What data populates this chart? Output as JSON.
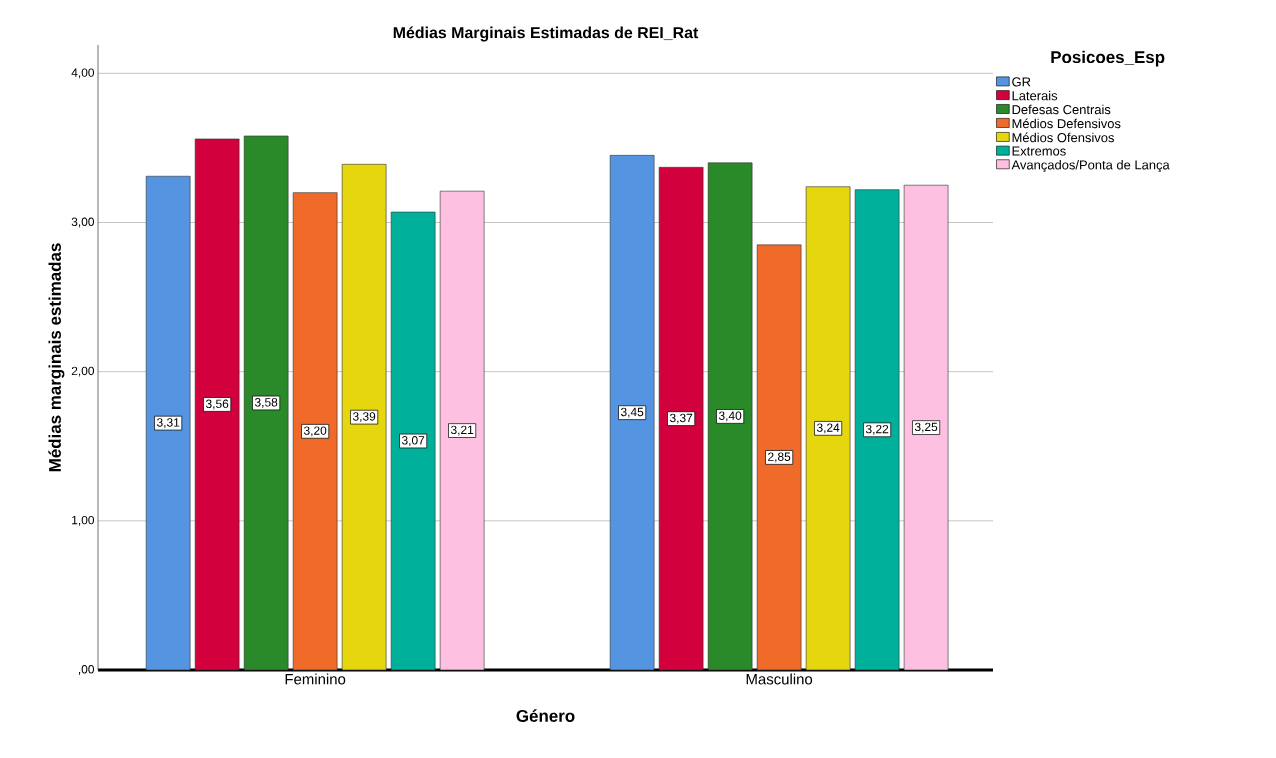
{
  "chart_data": {
    "type": "bar",
    "title": "Médias Marginais Estimadas de REI_Rat",
    "xlabel": "Género",
    "ylabel": "Médias marginais estimadas",
    "legend_title": "Posicoes_Esp",
    "categories": [
      "Feminino",
      "Masculino"
    ],
    "series": [
      {
        "name": "GR",
        "color": "#5594e0",
        "values": [
          3.31,
          3.45
        ],
        "value_labels": [
          "3,31",
          "3,45"
        ]
      },
      {
        "name": "Laterais",
        "color": "#d2003c",
        "values": [
          3.56,
          3.37
        ],
        "value_labels": [
          "3,56",
          "3,37"
        ]
      },
      {
        "name": "Defesas Centrais",
        "color": "#2a8a2a",
        "values": [
          3.58,
          3.4
        ],
        "value_labels": [
          "3,58",
          "3,40"
        ]
      },
      {
        "name": "Médios Defensivos",
        "color": "#f06a2a",
        "values": [
          3.2,
          2.85
        ],
        "value_labels": [
          "3,20",
          "2,85"
        ]
      },
      {
        "name": "Médios Ofensivos",
        "color": "#e5d60e",
        "values": [
          3.39,
          3.24
        ],
        "value_labels": [
          "3,39",
          "3,24"
        ]
      },
      {
        "name": "Extremos",
        "color": "#00b09a",
        "values": [
          3.07,
          3.22
        ],
        "value_labels": [
          "3,07",
          "3,22"
        ]
      },
      {
        "name": "Avançados/Ponta de Lança",
        "color": "#fdc0e0",
        "values": [
          3.21,
          3.25
        ],
        "value_labels": [
          "3,21",
          "3,25"
        ]
      }
    ],
    "ylim": [
      0,
      4.19
    ],
    "yticks": [
      {
        "value": 0,
        "label": ",00"
      },
      {
        "value": 1,
        "label": "1,00"
      },
      {
        "value": 2,
        "label": "2,00"
      },
      {
        "value": 3,
        "label": "3,00"
      },
      {
        "value": 4,
        "label": "4,00"
      }
    ],
    "grid": "y",
    "legend": "right"
  }
}
